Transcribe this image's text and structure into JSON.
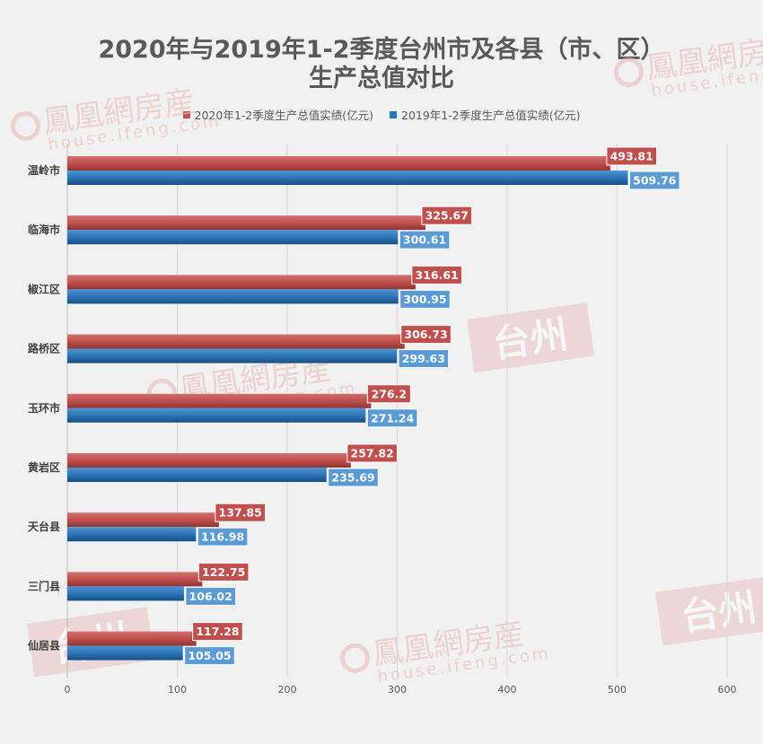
{
  "title": {
    "line1": "2020年与2019年1-2季度台州市及各县（市、区）",
    "line2": "生产总值对比"
  },
  "watermark": {
    "brand": "鳳凰網房産",
    "domain": "house.ifeng.com",
    "city": "台州"
  },
  "colors": {
    "series_2020": "#c0504d",
    "series_2019": "#2e75b6",
    "label_bg_2019": "#5b9bd5",
    "grid": "#d9d9d9",
    "background": "#f1f1f1",
    "watermark": "#e8b8b6"
  },
  "chart_data": {
    "type": "bar",
    "orientation": "horizontal",
    "categories": [
      "温岭市",
      "临海市",
      "椒江区",
      "路桥区",
      "玉环市",
      "黄岩区",
      "天台县",
      "三门县",
      "仙居县"
    ],
    "series": [
      {
        "name": "2020年1-2季度生产总值实绩(亿元)",
        "values": [
          493.81,
          325.67,
          316.61,
          306.73,
          276.2,
          257.82,
          137.85,
          122.75,
          117.28
        ]
      },
      {
        "name": "2019年1-2季度生产总值实绩(亿元)",
        "values": [
          509.76,
          300.61,
          300.95,
          299.63,
          271.24,
          235.69,
          116.98,
          106.02,
          105.05
        ]
      }
    ],
    "xlim": [
      0,
      600
    ],
    "ticks": [
      0,
      100,
      200,
      300,
      400,
      500,
      600
    ],
    "grid": true,
    "legend_position": "top"
  }
}
